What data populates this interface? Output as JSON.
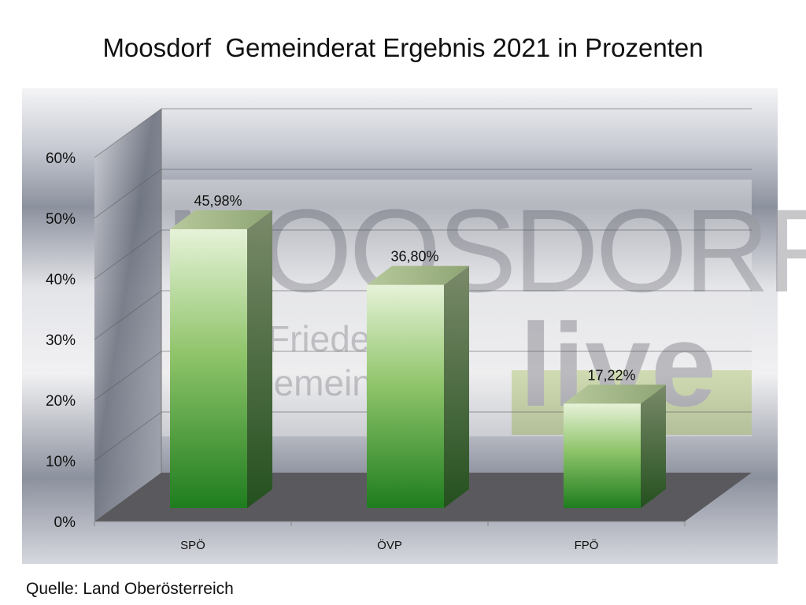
{
  "chart_data": {
    "type": "bar",
    "title": "Moosdorf  Gemeinderat Ergebnis 2021 in Prozenten",
    "categories": [
      "SPÖ",
      "ÖVP",
      "FPÖ"
    ],
    "values": [
      45.98,
      36.8,
      17.22
    ],
    "data_labels": [
      "45,98%",
      "36,80%",
      "17,22%"
    ],
    "ylim": [
      0,
      60
    ],
    "yticks": [
      0,
      10,
      20,
      30,
      40,
      50,
      60
    ],
    "ytick_labels": [
      "0%",
      "10%",
      "20%",
      "30%",
      "40%",
      "50%",
      "60%"
    ],
    "xlabel": "",
    "ylabel": "",
    "grid": true,
    "legend": "none",
    "bar_color": "#2e8b2e",
    "three_d": true
  },
  "source": "Quelle: Land Oberösterreich",
  "watermark": {
    "brand": "MOOSDORF",
    "tag": "live",
    "line1": "Friedens-",
    "line2": "gemeinde"
  }
}
